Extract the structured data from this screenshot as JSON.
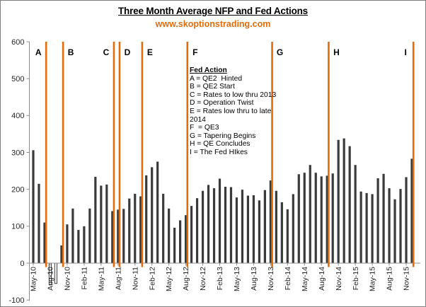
{
  "title": "Three Month Average NFP and Fed Actions",
  "watermark": "www.skoptionstrading.com",
  "colors": {
    "accent_orange": "#E36C0A",
    "bar_fill": "#3A3A3A",
    "axis_line": "#8C8C8C",
    "text": "#262626"
  },
  "legend": {
    "title": "Fed Action",
    "items": [
      "A = QE2  Hinted",
      "B = QE2 Start",
      "C = Rates to low thru 2013",
      "D = Operation Twist",
      "E = Rates low thru to late",
      "2014",
      "F  = QE3",
      "G = Tapering Begins",
      "H = QE Concludes",
      "I = The Fed HIkes"
    ]
  },
  "chart_data": {
    "type": "bar",
    "title": "Three Month Average NFP and Fed Actions",
    "subtitle": "www.skoptionstrading.com",
    "xlabel": "",
    "ylabel": "",
    "ylim": [
      -100,
      600
    ],
    "ytick_step": 100,
    "grid": false,
    "x_label_interval": 3,
    "x": [
      "May-10",
      "Jun-10",
      "Jul-10",
      "Aug-10",
      "Sep-10",
      "Oct-10",
      "Nov-10",
      "Dec-10",
      "Jan-11",
      "Feb-11",
      "Mar-11",
      "Apr-11",
      "May-11",
      "Jun-11",
      "Jul-11",
      "Aug-11",
      "Sep-11",
      "Oct-11",
      "Nov-11",
      "Dec-11",
      "Jan-12",
      "Feb-12",
      "Mar-12",
      "Apr-12",
      "May-12",
      "Jun-12",
      "Jul-12",
      "Aug-12",
      "Sep-12",
      "Oct-12",
      "Nov-12",
      "Dec-12",
      "Jan-13",
      "Feb-13",
      "Mar-13",
      "Apr-13",
      "May-13",
      "Jun-13",
      "Jul-13",
      "Aug-13",
      "Sep-13",
      "Oct-13",
      "Nov-13",
      "Dec-13",
      "Jan-14",
      "Feb-14",
      "Mar-14",
      "Apr-14",
      "May-14",
      "Jun-14",
      "Jul-14",
      "Aug-14",
      "Sep-14",
      "Oct-14",
      "Nov-14",
      "Dec-14",
      "Jan-15",
      "Feb-15",
      "Mar-15",
      "Apr-15",
      "May-15",
      "Jun-15",
      "Jul-15",
      "Aug-15",
      "Sep-15",
      "Oct-15",
      "Nov-15",
      "Dec-15"
    ],
    "values": [
      306,
      215,
      110,
      -58,
      -55,
      48,
      105,
      148,
      90,
      100,
      148,
      234,
      210,
      213,
      141,
      145,
      147,
      175,
      188,
      181,
      238,
      260,
      275,
      188,
      148,
      96,
      116,
      130,
      155,
      176,
      196,
      212,
      203,
      229,
      207,
      206,
      178,
      199,
      183,
      184,
      170,
      198,
      224,
      196,
      165,
      146,
      187,
      241,
      245,
      266,
      245,
      235,
      237,
      243,
      334,
      338,
      317,
      266,
      194,
      190,
      187,
      230,
      242,
      203,
      173,
      201,
      233,
      283
    ],
    "events": [
      {
        "letter": "A",
        "action": "QE2 Hinted",
        "after_index": 2,
        "letter_side": "left"
      },
      {
        "letter": "B",
        "action": "QE2 Start",
        "after_index": 5,
        "letter_side": "right"
      },
      {
        "letter": "C",
        "action": "Rates to low thru 2013",
        "after_index": 14,
        "letter_side": "left"
      },
      {
        "letter": "D",
        "action": "Operation Twist",
        "after_index": 15,
        "letter_side": "right"
      },
      {
        "letter": "E",
        "action": "Rates low thru to late 2014",
        "after_index": 19,
        "letter_side": "right"
      },
      {
        "letter": "F",
        "action": "QE3",
        "after_index": 27,
        "letter_side": "right"
      },
      {
        "letter": "G",
        "action": "Tapering Begins",
        "after_index": 42,
        "letter_side": "right"
      },
      {
        "letter": "H",
        "action": "QE Concludes",
        "after_index": 52,
        "letter_side": "right"
      },
      {
        "letter": "I",
        "action": "The Fed HIkes",
        "after_index": 67,
        "letter_side": "left"
      }
    ]
  }
}
